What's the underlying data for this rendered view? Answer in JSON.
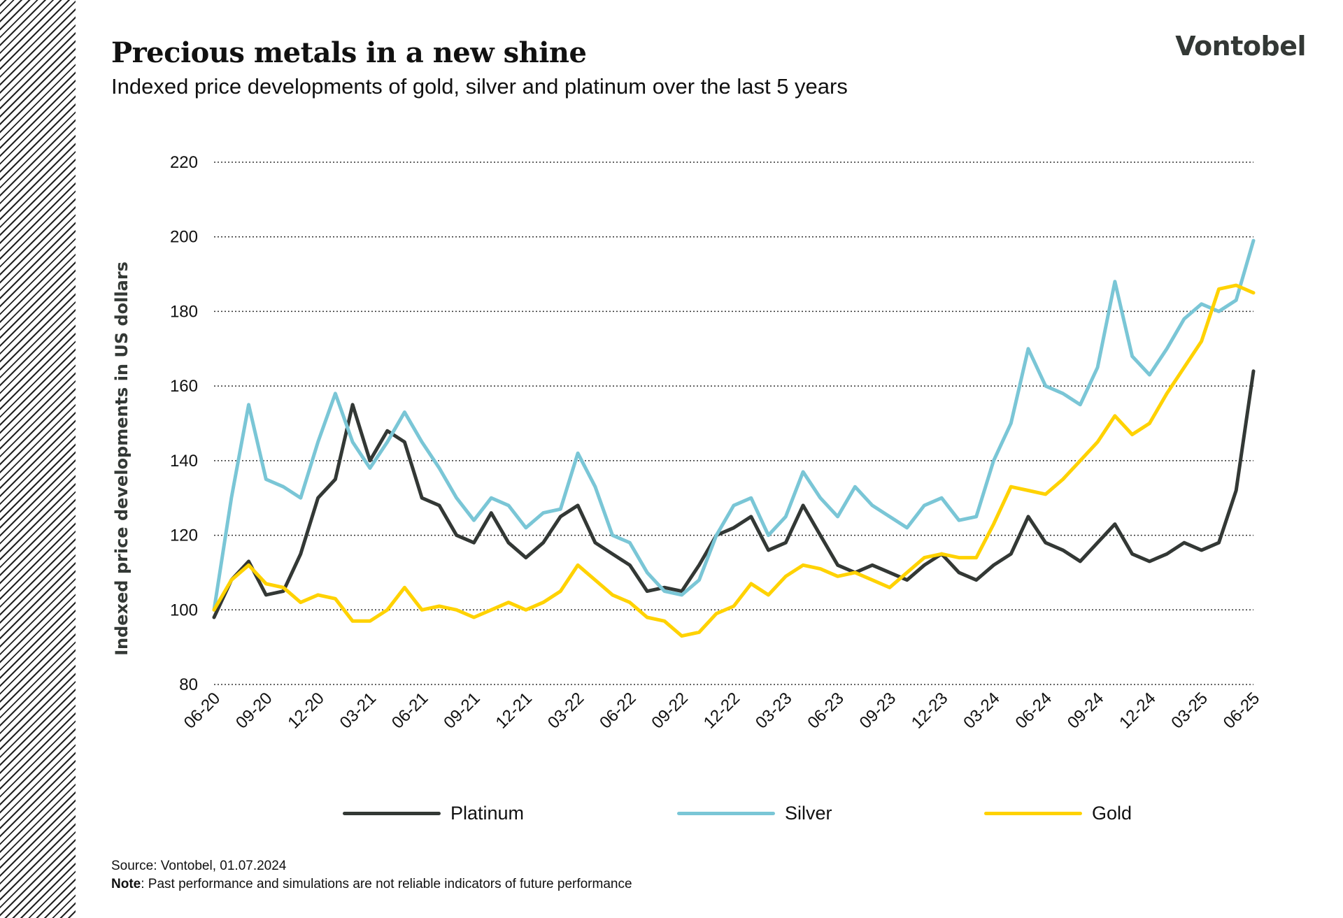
{
  "header": {
    "title": "Precious metals in a new shine",
    "subtitle": "Indexed price developments of gold, silver and platinum over the last 5 years",
    "logo": "Vontobel"
  },
  "footer": {
    "source": "Source: Vontobel, 01.07.2024",
    "note_label": "Note",
    "note_text": ": Past performance and simulations are not reliable indicators of future performance"
  },
  "chart_data": {
    "type": "line",
    "title": "",
    "xlabel": "",
    "ylabel": "Indexed price developments in US dollars",
    "ylim": [
      80,
      220
    ],
    "yticks": [
      80,
      100,
      120,
      140,
      160,
      180,
      200,
      220
    ],
    "grid": "horizontal dotted",
    "legend": "bottom",
    "xtick_labels": [
      "06-20",
      "09-20",
      "12-20",
      "03-21",
      "06-21",
      "09-21",
      "12-21",
      "03-22",
      "06-22",
      "09-22",
      "12-22",
      "03-23",
      "06-23",
      "09-23",
      "12-23",
      "03-24",
      "06-24",
      "09-24",
      "12-24",
      "03-25",
      "06-25"
    ],
    "x": [
      "2020-06",
      "2020-07",
      "2020-08",
      "2020-09",
      "2020-10",
      "2020-11",
      "2020-12",
      "2021-01",
      "2021-02",
      "2021-03",
      "2021-04",
      "2021-05",
      "2021-06",
      "2021-07",
      "2021-08",
      "2021-09",
      "2021-10",
      "2021-11",
      "2021-12",
      "2022-01",
      "2022-02",
      "2022-03",
      "2022-04",
      "2022-05",
      "2022-06",
      "2022-07",
      "2022-08",
      "2022-09",
      "2022-10",
      "2022-11",
      "2022-12",
      "2023-01",
      "2023-02",
      "2023-03",
      "2023-04",
      "2023-05",
      "2023-06",
      "2023-07",
      "2023-08",
      "2023-09",
      "2023-10",
      "2023-11",
      "2023-12",
      "2024-01",
      "2024-02",
      "2024-03",
      "2024-04",
      "2024-05",
      "2024-06",
      "2024-07",
      "2024-08",
      "2024-09",
      "2024-10",
      "2024-11",
      "2024-12",
      "2025-01",
      "2025-02",
      "2025-03",
      "2025-04",
      "2025-05",
      "2025-06"
    ],
    "series": [
      {
        "name": "Platinum",
        "color": "#333835",
        "values": [
          98,
          108,
          113,
          104,
          105,
          115,
          130,
          135,
          155,
          140,
          148,
          145,
          130,
          128,
          120,
          118,
          126,
          118,
          114,
          118,
          125,
          128,
          118,
          115,
          112,
          105,
          106,
          105,
          112,
          120,
          122,
          125,
          116,
          118,
          128,
          120,
          112,
          110,
          112,
          110,
          108,
          112,
          115,
          110,
          108,
          112,
          115,
          125,
          118,
          116,
          113,
          118,
          123,
          115,
          113,
          115,
          118,
          116,
          118,
          132,
          164
        ]
      },
      {
        "name": "Silver",
        "color": "#7AC6D6",
        "values": [
          100,
          130,
          155,
          135,
          133,
          130,
          145,
          158,
          145,
          138,
          145,
          153,
          145,
          138,
          130,
          124,
          130,
          128,
          122,
          126,
          127,
          142,
          133,
          120,
          118,
          110,
          105,
          104,
          108,
          120,
          128,
          130,
          120,
          125,
          137,
          130,
          125,
          133,
          128,
          125,
          122,
          128,
          130,
          124,
          125,
          140,
          150,
          170,
          160,
          158,
          155,
          165,
          188,
          168,
          163,
          170,
          178,
          182,
          180,
          183,
          199
        ]
      },
      {
        "name": "Gold",
        "color": "#FFD200",
        "values": [
          100,
          108,
          112,
          107,
          106,
          102,
          104,
          103,
          97,
          97,
          100,
          106,
          100,
          101,
          100,
          98,
          100,
          102,
          100,
          102,
          105,
          112,
          108,
          104,
          102,
          98,
          97,
          93,
          94,
          99,
          101,
          107,
          104,
          109,
          112,
          111,
          109,
          110,
          108,
          106,
          110,
          114,
          115,
          114,
          114,
          123,
          133,
          132,
          131,
          135,
          140,
          145,
          152,
          147,
          150,
          158,
          165,
          172,
          186,
          187,
          185
        ]
      }
    ]
  }
}
